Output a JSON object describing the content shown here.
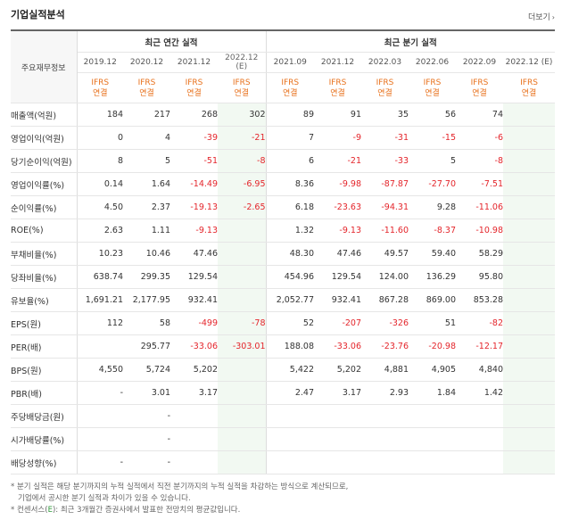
{
  "title": "기업실적분석",
  "more": "더보기",
  "header": {
    "row_label": "주요재무정보",
    "annual_group": "최근 연간 실적",
    "quarter_group": "최근 분기 실적",
    "ifrs_top": "IFRS",
    "ifrs_bottom": "연결",
    "annual_periods": [
      "2019.12",
      "2020.12",
      "2021.12",
      "2022.12",
      "(E)"
    ],
    "quarter_periods": [
      "2021.09",
      "2021.12",
      "2022.03",
      "2022.06",
      "2022.09",
      "2022.12 (E)"
    ]
  },
  "rows": [
    {
      "label": "매출액(억원)",
      "values": [
        "184",
        "217",
        "268",
        "302",
        "89",
        "91",
        "35",
        "56",
        "74",
        ""
      ]
    },
    {
      "label": "영업이익(억원)",
      "values": [
        "0",
        "4",
        "-39",
        "-21",
        "7",
        "-9",
        "-31",
        "-15",
        "-6",
        ""
      ]
    },
    {
      "label": "당기순이익(억원)",
      "values": [
        "8",
        "5",
        "-51",
        "-8",
        "6",
        "-21",
        "-33",
        "5",
        "-8",
        ""
      ]
    },
    {
      "label": "영업이익률(%)",
      "values": [
        "0.14",
        "1.64",
        "-14.49",
        "-6.95",
        "8.36",
        "-9.98",
        "-87.87",
        "-27.70",
        "-7.51",
        ""
      ]
    },
    {
      "label": "순이익률(%)",
      "values": [
        "4.50",
        "2.37",
        "-19.13",
        "-2.65",
        "6.18",
        "-23.63",
        "-94.31",
        "9.28",
        "-11.06",
        ""
      ]
    },
    {
      "label": "ROE(%)",
      "values": [
        "2.63",
        "1.11",
        "-9.13",
        "",
        "1.32",
        "-9.13",
        "-11.60",
        "-8.37",
        "-10.98",
        ""
      ]
    },
    {
      "label": "부채비율(%)",
      "values": [
        "10.23",
        "10.46",
        "47.46",
        "",
        "48.30",
        "47.46",
        "49.57",
        "59.40",
        "58.29",
        ""
      ]
    },
    {
      "label": "당좌비율(%)",
      "values": [
        "638.74",
        "299.35",
        "129.54",
        "",
        "454.96",
        "129.54",
        "124.00",
        "136.29",
        "95.80",
        ""
      ]
    },
    {
      "label": "유보율(%)",
      "values": [
        "1,691.21",
        "2,177.95",
        "932.41",
        "",
        "2,052.77",
        "932.41",
        "867.28",
        "869.00",
        "853.28",
        ""
      ]
    },
    {
      "label": "EPS(원)",
      "values": [
        "112",
        "58",
        "-499",
        "-78",
        "52",
        "-207",
        "-326",
        "51",
        "-82",
        ""
      ]
    },
    {
      "label": "PER(배)",
      "values": [
        "",
        "295.77",
        "-33.06",
        "-303.01",
        "188.08",
        "-33.06",
        "-23.76",
        "-20.98",
        "-12.17",
        ""
      ]
    },
    {
      "label": "BPS(원)",
      "values": [
        "4,550",
        "5,724",
        "5,202",
        "",
        "5,422",
        "5,202",
        "4,881",
        "4,905",
        "4,840",
        ""
      ]
    },
    {
      "label": "PBR(배)",
      "values": [
        "-",
        "3.01",
        "3.17",
        "",
        "2.47",
        "3.17",
        "2.93",
        "1.84",
        "1.42",
        ""
      ]
    },
    {
      "label": "주당배당금(원)",
      "values": [
        "",
        "-",
        "",
        "",
        "",
        "",
        "",
        "",
        "",
        ""
      ]
    },
    {
      "label": "시가배당률(%)",
      "values": [
        "",
        "-",
        "",
        "",
        "",
        "",
        "",
        "",
        "",
        ""
      ]
    },
    {
      "label": "배당성향(%)",
      "values": [
        "-",
        "-",
        "",
        "",
        "",
        "",
        "",
        "",
        "",
        ""
      ]
    }
  ],
  "notes": {
    "line1": "* 분기 실적은 해당 분기까지의 누적 실적에서 직전 분기까지의 누적 실적을 차감하는 방식으로 계산되므로,",
    "line2": "기업에서 공시한 분기 실적과 차이가 있을 수 있습니다.",
    "line3_pre": "* 컨센서스(",
    "line3_e": "E",
    "line3_post": "): 최근 3개월간 증권사에서 발표한 전망치의 평균값입니다."
  },
  "colors": {
    "negative": "#e4252b",
    "ifrs": "#e8711c",
    "estimate_bg": "#f2f9f2",
    "consensus": "#2f9a3b"
  }
}
